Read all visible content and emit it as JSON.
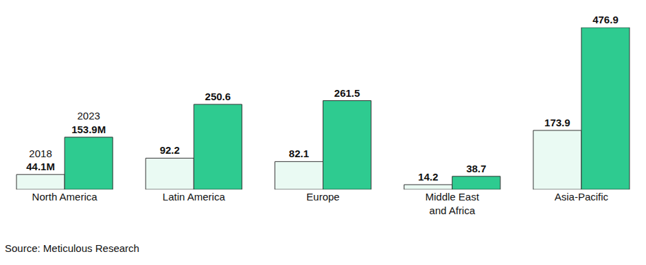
{
  "chart_data": {
    "type": "bar",
    "categories": [
      "North America",
      "Latin America",
      "Europe",
      "Middle East\nand Africa",
      "Asia-Pacific"
    ],
    "series": [
      {
        "name": "2018",
        "color": "#eafaf3",
        "values": [
          44.1,
          92.2,
          82.1,
          14.2,
          173.9
        ],
        "value_labels": [
          "44.1M",
          "92.2",
          "82.1",
          "14.2",
          "173.9"
        ]
      },
      {
        "name": "2023",
        "color": "#2ecb90",
        "values": [
          153.9,
          250.6,
          261.5,
          38.7,
          476.9
        ],
        "value_labels": [
          "153.9M",
          "250.6",
          "261.5",
          "38.7",
          "476.9"
        ]
      }
    ],
    "ylim": [
      0,
      476.9
    ],
    "data_labels": true,
    "tick_labels": "x",
    "grid": false,
    "annotations": [
      "Source: Meticulous Research"
    ]
  }
}
